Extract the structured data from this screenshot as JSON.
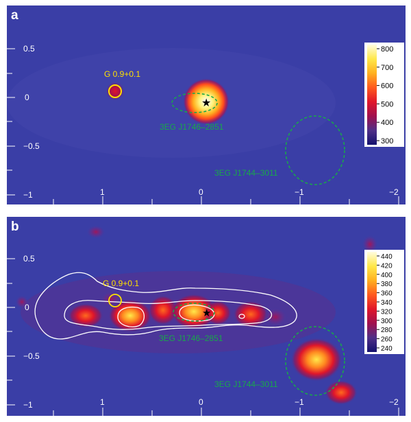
{
  "panels": [
    {
      "id": "a",
      "letter": "a",
      "sources": [
        {
          "label": "G 0.9+0.1",
          "color": "#ffe100"
        },
        {
          "label": "3EG J1746–2851",
          "color": "#19a84a"
        },
        {
          "label": "3EG J1744–3011",
          "color": "#19a84a"
        }
      ],
      "x_ticks": [
        "1",
        "0",
        "−1",
        "−2"
      ],
      "y_ticks": [
        "0.5",
        "0",
        "−0.5",
        "−1"
      ],
      "colorbar": {
        "ticks": [
          "800",
          "700",
          "600",
          "500",
          "400",
          "300"
        ],
        "stops": [
          "#fffde0",
          "#ffe84a",
          "#ffb020",
          "#ff5a1e",
          "#e0162a",
          "#a0104e",
          "#503088",
          "#14126e"
        ]
      }
    },
    {
      "id": "b",
      "letter": "b",
      "sources": [
        {
          "label": "G 0.9+0.1",
          "color": "#ffe100"
        },
        {
          "label": "3EG J1746–2851",
          "color": "#19a84a"
        },
        {
          "label": "3EG J1744–3011",
          "color": "#19a84a"
        }
      ],
      "x_ticks": [
        "1",
        "0",
        "−1",
        "−2"
      ],
      "y_ticks": [
        "0.5",
        "0",
        "−0.5",
        "−1"
      ],
      "colorbar": {
        "ticks": [
          "440",
          "420",
          "400",
          "380",
          "360",
          "340",
          "320",
          "300",
          "280",
          "260",
          "240"
        ],
        "stops": [
          "#fffde0",
          "#ffe84a",
          "#ffb020",
          "#ff5a1e",
          "#e0162a",
          "#a0104e",
          "#503088",
          "#14126e"
        ]
      }
    }
  ],
  "colors": {
    "background": "#3a3ea6",
    "axis": "#ffffff",
    "contour": "#ffffff",
    "star": "#000000"
  }
}
